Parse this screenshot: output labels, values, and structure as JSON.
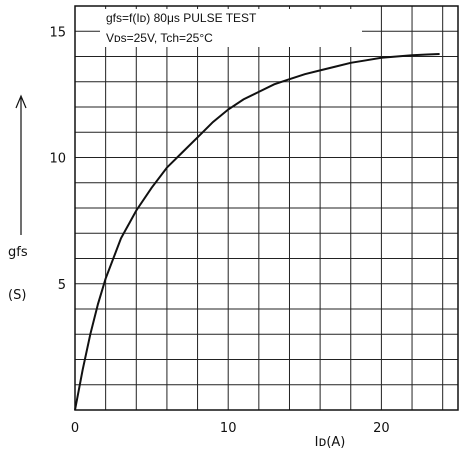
{
  "chart_data": {
    "type": "line",
    "title": "",
    "annotation_lines": [
      "gfs=f(Iᴅ) 80μs PULSE TEST",
      "Vᴅs=25V, Tch=25°C"
    ],
    "ylabel": "gfs",
    "yunit": "(S)",
    "xlabel": "Iᴅ(A)",
    "xlim": [
      0,
      25
    ],
    "ylim": [
      0,
      16
    ],
    "xticks": [
      0,
      10,
      20
    ],
    "yticks": [
      5,
      10,
      15
    ],
    "grid": true,
    "series": [
      {
        "x": [
          0,
          0.5,
          1,
          1.5,
          2,
          3,
          4,
          5,
          6,
          7,
          8,
          9,
          10,
          11,
          12,
          13,
          14,
          15,
          16,
          17,
          18,
          19,
          20,
          21,
          22,
          23,
          23.8
        ],
        "y": [
          0,
          1.6,
          3.0,
          4.2,
          5.2,
          6.8,
          7.9,
          8.8,
          9.6,
          10.2,
          10.8,
          11.4,
          11.9,
          12.3,
          12.6,
          12.9,
          13.1,
          13.3,
          13.45,
          13.6,
          13.75,
          13.85,
          13.95,
          14.0,
          14.05,
          14.08,
          14.1
        ]
      }
    ]
  }
}
